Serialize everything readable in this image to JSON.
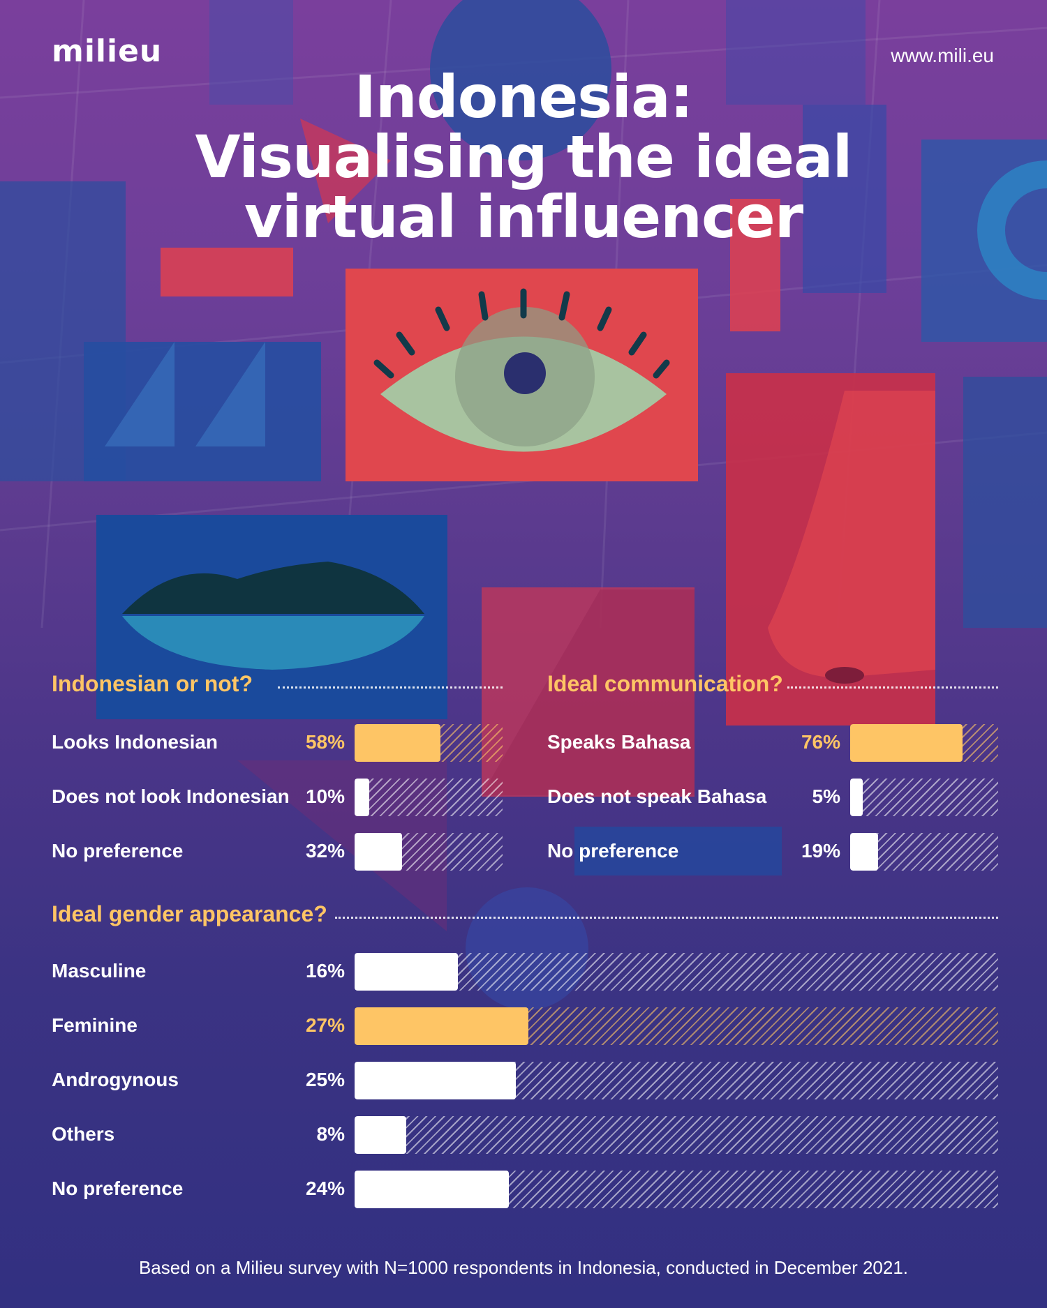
{
  "header": {
    "logo_text": "milieu",
    "url": "www.mili.eu",
    "title_lines": [
      "Indonesia:",
      "Visualising the ideal",
      "virtual influencer"
    ]
  },
  "colors": {
    "highlight": "#fec565",
    "neutral": "#ffffff",
    "section_title": "#fec565"
  },
  "chart_data": [
    {
      "type": "bar",
      "title": "Indonesian or not?",
      "categories": [
        "Looks Indonesian",
        "Does not look Indonesian",
        "No preference"
      ],
      "values": [
        58,
        10,
        32
      ],
      "labels": [
        "58%",
        "10%",
        "32%"
      ],
      "highlight": [
        true,
        false,
        false
      ],
      "unit": "%",
      "xlim": [
        0,
        100
      ]
    },
    {
      "type": "bar",
      "title": "Ideal communication?",
      "categories": [
        "Speaks Bahasa",
        "Does not speak Bahasa",
        "No preference"
      ],
      "values": [
        76,
        5,
        19
      ],
      "labels": [
        "76%",
        "5%",
        "19%"
      ],
      "highlight": [
        true,
        false,
        false
      ],
      "unit": "%",
      "xlim": [
        0,
        100
      ]
    },
    {
      "type": "bar",
      "title": "Ideal gender appearance?",
      "categories": [
        "Masculine",
        "Feminine",
        "Androgynous",
        "Others",
        "No preference"
      ],
      "values": [
        16,
        27,
        25,
        8,
        24
      ],
      "labels": [
        "16%",
        "27%",
        "25%",
        "8%",
        "24%"
      ],
      "highlight": [
        false,
        true,
        false,
        false,
        false
      ],
      "unit": "%",
      "xlim": [
        0,
        100
      ]
    }
  ],
  "footer": "Based on a Milieu survey with N=1000 respondents in Indonesia, conducted in December 2021."
}
